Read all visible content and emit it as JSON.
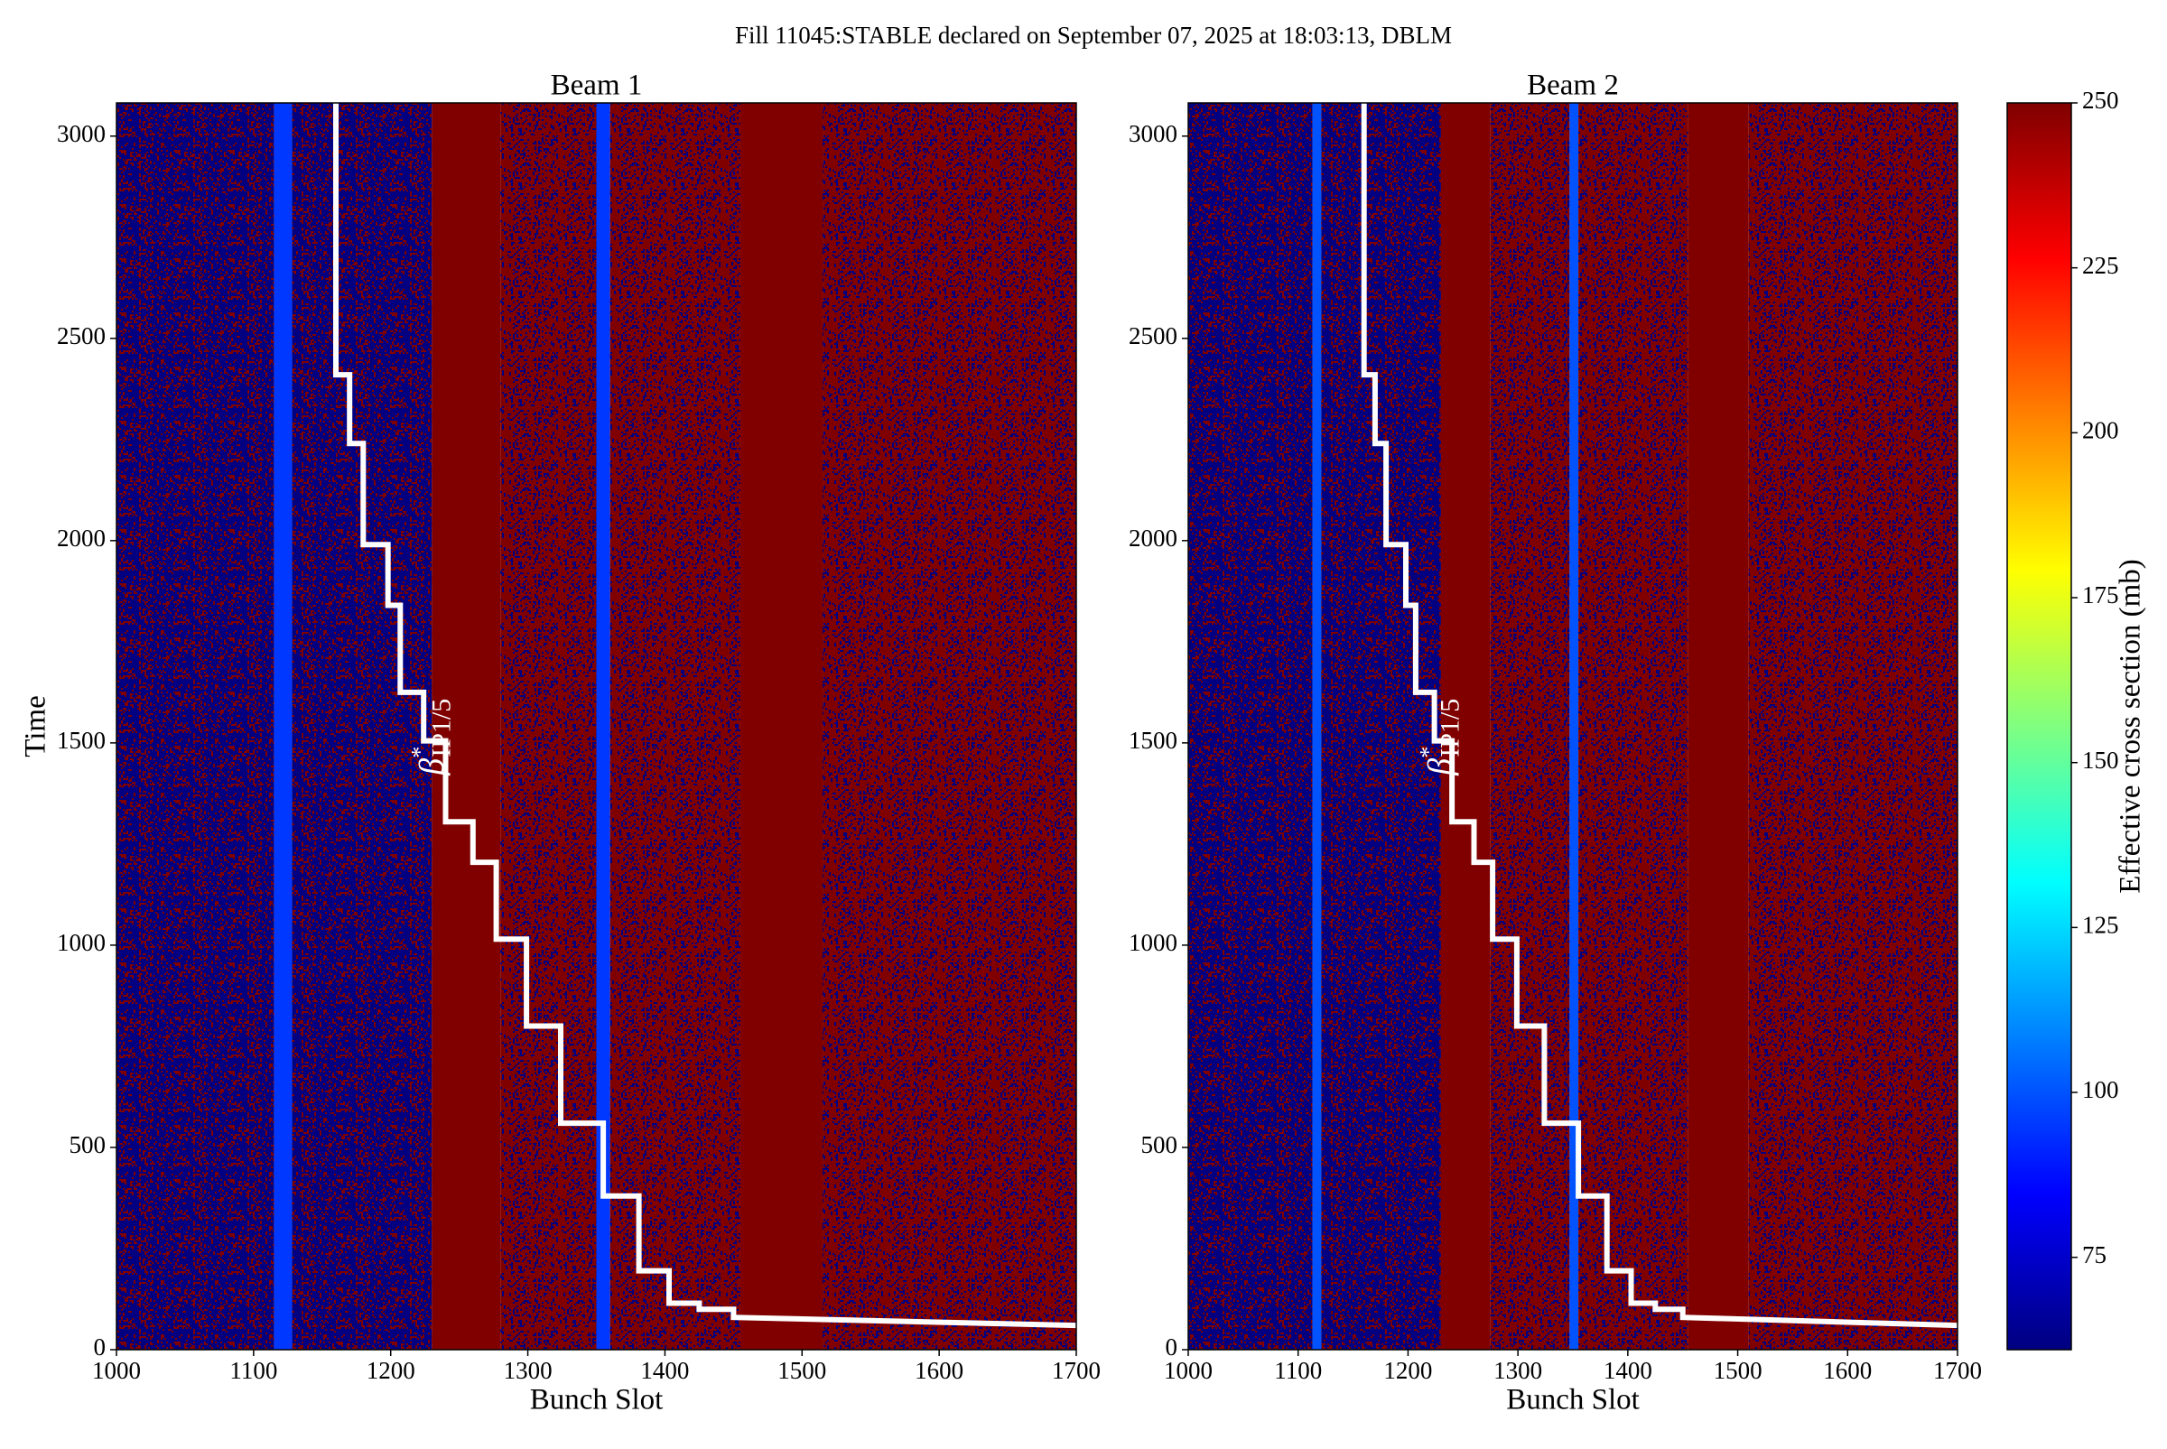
{
  "title": "Fill 11045:STABLE declared on September 07, 2025 at 18:03:13, DBLM",
  "colorbar": {
    "label": "Effective cross section (mb)",
    "lim": [
      61,
      250
    ],
    "ticks": [
      75,
      100,
      125,
      150,
      175,
      200,
      225,
      250
    ],
    "colormap": "jet"
  },
  "chart_data": [
    {
      "type": "heatmap",
      "title": "Beam 1",
      "xlabel": "Bunch Slot",
      "ylabel": "Time",
      "xlim": [
        1000,
        1700
      ],
      "xticks": [
        1000,
        1100,
        1200,
        1300,
        1400,
        1500,
        1600,
        1700
      ],
      "ylim": [
        0,
        3082
      ],
      "yticks": [
        0,
        500,
        1000,
        1500,
        2000,
        2500,
        3000
      ],
      "bands": {
        "edges": [
          1000,
          1115,
          1128,
          1230,
          1280,
          1350,
          1360,
          1455,
          1515,
          1700
        ],
        "values": [
          61,
          95,
          61,
          250,
          250,
          95,
          250,
          250,
          250
        ],
        "noisy": [
          true,
          false,
          true,
          false,
          true,
          false,
          true,
          false,
          true
        ]
      },
      "line": {
        "color": "#ffffff",
        "x": [
          1160,
          1160,
          1170,
          1170,
          1180,
          1180,
          1198,
          1198,
          1207,
          1207,
          1224,
          1224,
          1240,
          1240,
          1260,
          1260,
          1277,
          1277,
          1299,
          1299,
          1324,
          1324,
          1355,
          1355,
          1381,
          1381,
          1403,
          1403,
          1425,
          1425,
          1450,
          1450,
          1700
        ],
        "y": [
          3082,
          2410,
          2410,
          2240,
          2240,
          1990,
          1990,
          1840,
          1840,
          1625,
          1625,
          1505,
          1505,
          1305,
          1305,
          1205,
          1205,
          1015,
          1015,
          800,
          800,
          560,
          560,
          380,
          380,
          195,
          195,
          115,
          115,
          100,
          100,
          80,
          60
        ]
      },
      "annotation": {
        "symbol": "β",
        "sup": "*",
        "sub": "IP1/5"
      }
    },
    {
      "type": "heatmap",
      "title": "Beam 2",
      "xlabel": "Bunch Slot",
      "xlim": [
        1000,
        1700
      ],
      "xticks": [
        1000,
        1100,
        1200,
        1300,
        1400,
        1500,
        1600,
        1700
      ],
      "ylim": [
        0,
        3082
      ],
      "yticks": [
        0,
        500,
        1000,
        1500,
        2000,
        2500,
        3000
      ],
      "bands": {
        "edges": [
          1000,
          1113,
          1121,
          1230,
          1275,
          1347,
          1355,
          1455,
          1510,
          1700
        ],
        "values": [
          61,
          100,
          61,
          250,
          250,
          100,
          250,
          250,
          250
        ],
        "noisy": [
          true,
          false,
          true,
          false,
          true,
          false,
          true,
          false,
          true
        ]
      },
      "line": {
        "color": "#ffffff",
        "x": [
          1160,
          1160,
          1170,
          1170,
          1180,
          1180,
          1198,
          1198,
          1207,
          1207,
          1224,
          1224,
          1240,
          1240,
          1260,
          1260,
          1277,
          1277,
          1299,
          1299,
          1324,
          1324,
          1355,
          1355,
          1381,
          1381,
          1403,
          1403,
          1425,
          1425,
          1450,
          1450,
          1700
        ],
        "y": [
          3082,
          2410,
          2410,
          2240,
          2240,
          1990,
          1990,
          1840,
          1840,
          1625,
          1625,
          1505,
          1505,
          1305,
          1305,
          1205,
          1205,
          1015,
          1015,
          800,
          800,
          560,
          560,
          380,
          380,
          195,
          195,
          115,
          115,
          100,
          100,
          80,
          60
        ]
      },
      "annotation": {
        "symbol": "β",
        "sup": "*",
        "sub": "IP1/5"
      }
    }
  ]
}
